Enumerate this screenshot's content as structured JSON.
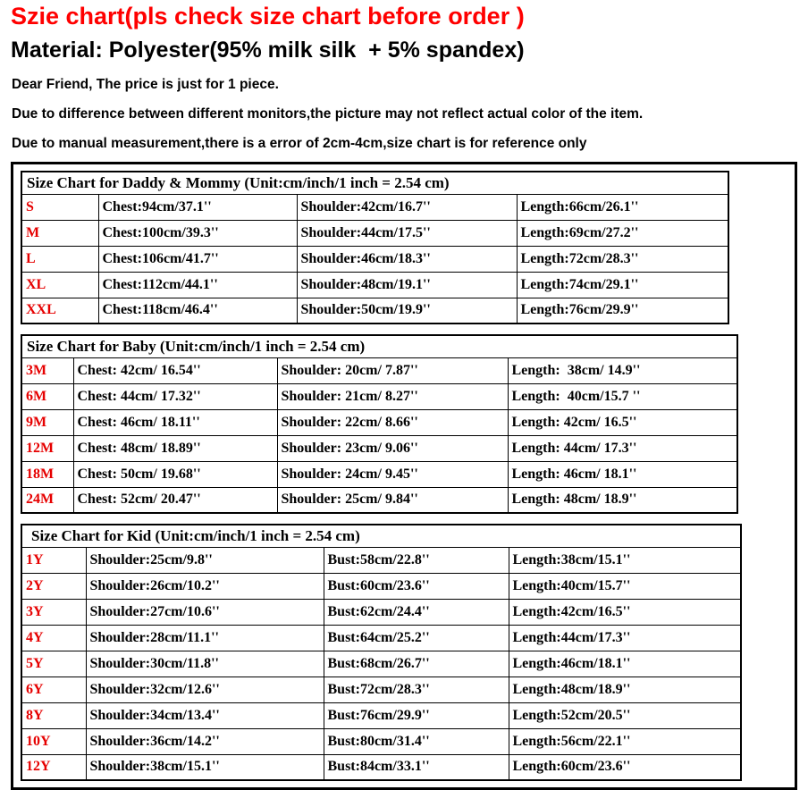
{
  "page": {
    "title": "Szie chart(pls check size chart before order )",
    "material": "Material: Polyester(95% milk silk  + 5% spandex)",
    "notes": [
      "Dear Friend, The price is just for 1 piece.",
      "Due to difference between different monitors,the picture may not reflect actual color of the item.",
      "Due to manual measurement,there is a error of 2cm-4cm,size chart is for reference only"
    ],
    "colors": {
      "title_red": "#ff0000",
      "size_label_red": "#e60000",
      "text_black": "#000000",
      "border_black": "#000000",
      "background": "#ffffff"
    }
  },
  "tables": [
    {
      "title": "Size Chart for Daddy & Mommy (Unit:cm/inch/1 inch = 2.54 cm)",
      "rows": [
        {
          "size": "S",
          "cols": [
            "Chest:94cm/37.1''",
            "Shoulder:42cm/16.7''",
            "Length:66cm/26.1''"
          ]
        },
        {
          "size": "M",
          "cols": [
            "Chest:100cm/39.3''",
            "Shoulder:44cm/17.5''",
            "Length:69cm/27.2''"
          ]
        },
        {
          "size": "L",
          "cols": [
            "Chest:106cm/41.7''",
            "Shoulder:46cm/18.3''",
            "Length:72cm/28.3''"
          ]
        },
        {
          "size": "XL",
          "cols": [
            "Chest:112cm/44.1''",
            "Shoulder:48cm/19.1''",
            "Length:74cm/29.1''"
          ]
        },
        {
          "size": "XXL",
          "cols": [
            "Chest:118cm/46.4''",
            "Shoulder:50cm/19.9''",
            "Length:76cm/29.9''"
          ]
        }
      ]
    },
    {
      "title": "Size Chart for Baby (Unit:cm/inch/1 inch = 2.54 cm)",
      "rows": [
        {
          "size": "3M",
          "cols": [
            "Chest: 42cm/ 16.54''",
            "Shoulder: 20cm/ 7.87''",
            "Length:  38cm/ 14.9''"
          ]
        },
        {
          "size": "6M",
          "cols": [
            "Chest: 44cm/ 17.32''",
            "Shoulder: 21cm/ 8.27''",
            "Length:  40cm/15.7 ''"
          ]
        },
        {
          "size": "9M",
          "cols": [
            "Chest: 46cm/ 18.11''",
            "Shoulder: 22cm/ 8.66''",
            "Length: 42cm/ 16.5''"
          ]
        },
        {
          "size": "12M",
          "cols": [
            "Chest: 48cm/ 18.89''",
            "Shoulder: 23cm/ 9.06''",
            "Length: 44cm/ 17.3''"
          ]
        },
        {
          "size": "18M",
          "cols": [
            "Chest: 50cm/ 19.68''",
            "Shoulder: 24cm/ 9.45''",
            "Length: 46cm/ 18.1''"
          ]
        },
        {
          "size": "24M",
          "cols": [
            "Chest: 52cm/ 20.47''",
            "Shoulder: 25cm/ 9.84''",
            "Length: 48cm/ 18.9''"
          ]
        }
      ]
    },
    {
      "title": "Size Chart for Kid (Unit:cm/inch/1 inch = 2.54 cm)",
      "rows": [
        {
          "size": "1Y",
          "cols": [
            "Shoulder:25cm/9.8''",
            "Bust:58cm/22.8''",
            "Length:38cm/15.1''"
          ]
        },
        {
          "size": "2Y",
          "cols": [
            "Shoulder:26cm/10.2''",
            "Bust:60cm/23.6''",
            "Length:40cm/15.7''"
          ]
        },
        {
          "size": "3Y",
          "cols": [
            "Shoulder:27cm/10.6''",
            "Bust:62cm/24.4''",
            "Length:42cm/16.5''"
          ]
        },
        {
          "size": "4Y",
          "cols": [
            "Shoulder:28cm/11.1''",
            "Bust:64cm/25.2''",
            "Length:44cm/17.3''"
          ]
        },
        {
          "size": "5Y",
          "cols": [
            "Shoulder:30cm/11.8''",
            "Bust:68cm/26.7''",
            "Length:46cm/18.1''"
          ]
        },
        {
          "size": "6Y",
          "cols": [
            "Shoulder:32cm/12.6''",
            "Bust:72cm/28.3''",
            "Length:48cm/18.9''"
          ]
        },
        {
          "size": "8Y",
          "cols": [
            "Shoulder:34cm/13.4''",
            "Bust:76cm/29.9''",
            "Length:52cm/20.5''"
          ]
        },
        {
          "size": "10Y",
          "cols": [
            "Shoulder:36cm/14.2''",
            "Bust:80cm/31.4''",
            "Length:56cm/22.1''"
          ]
        },
        {
          "size": "12Y",
          "cols": [
            "Shoulder:38cm/15.1''",
            "Bust:84cm/33.1''",
            "Length:60cm/23.6''"
          ]
        }
      ]
    }
  ]
}
